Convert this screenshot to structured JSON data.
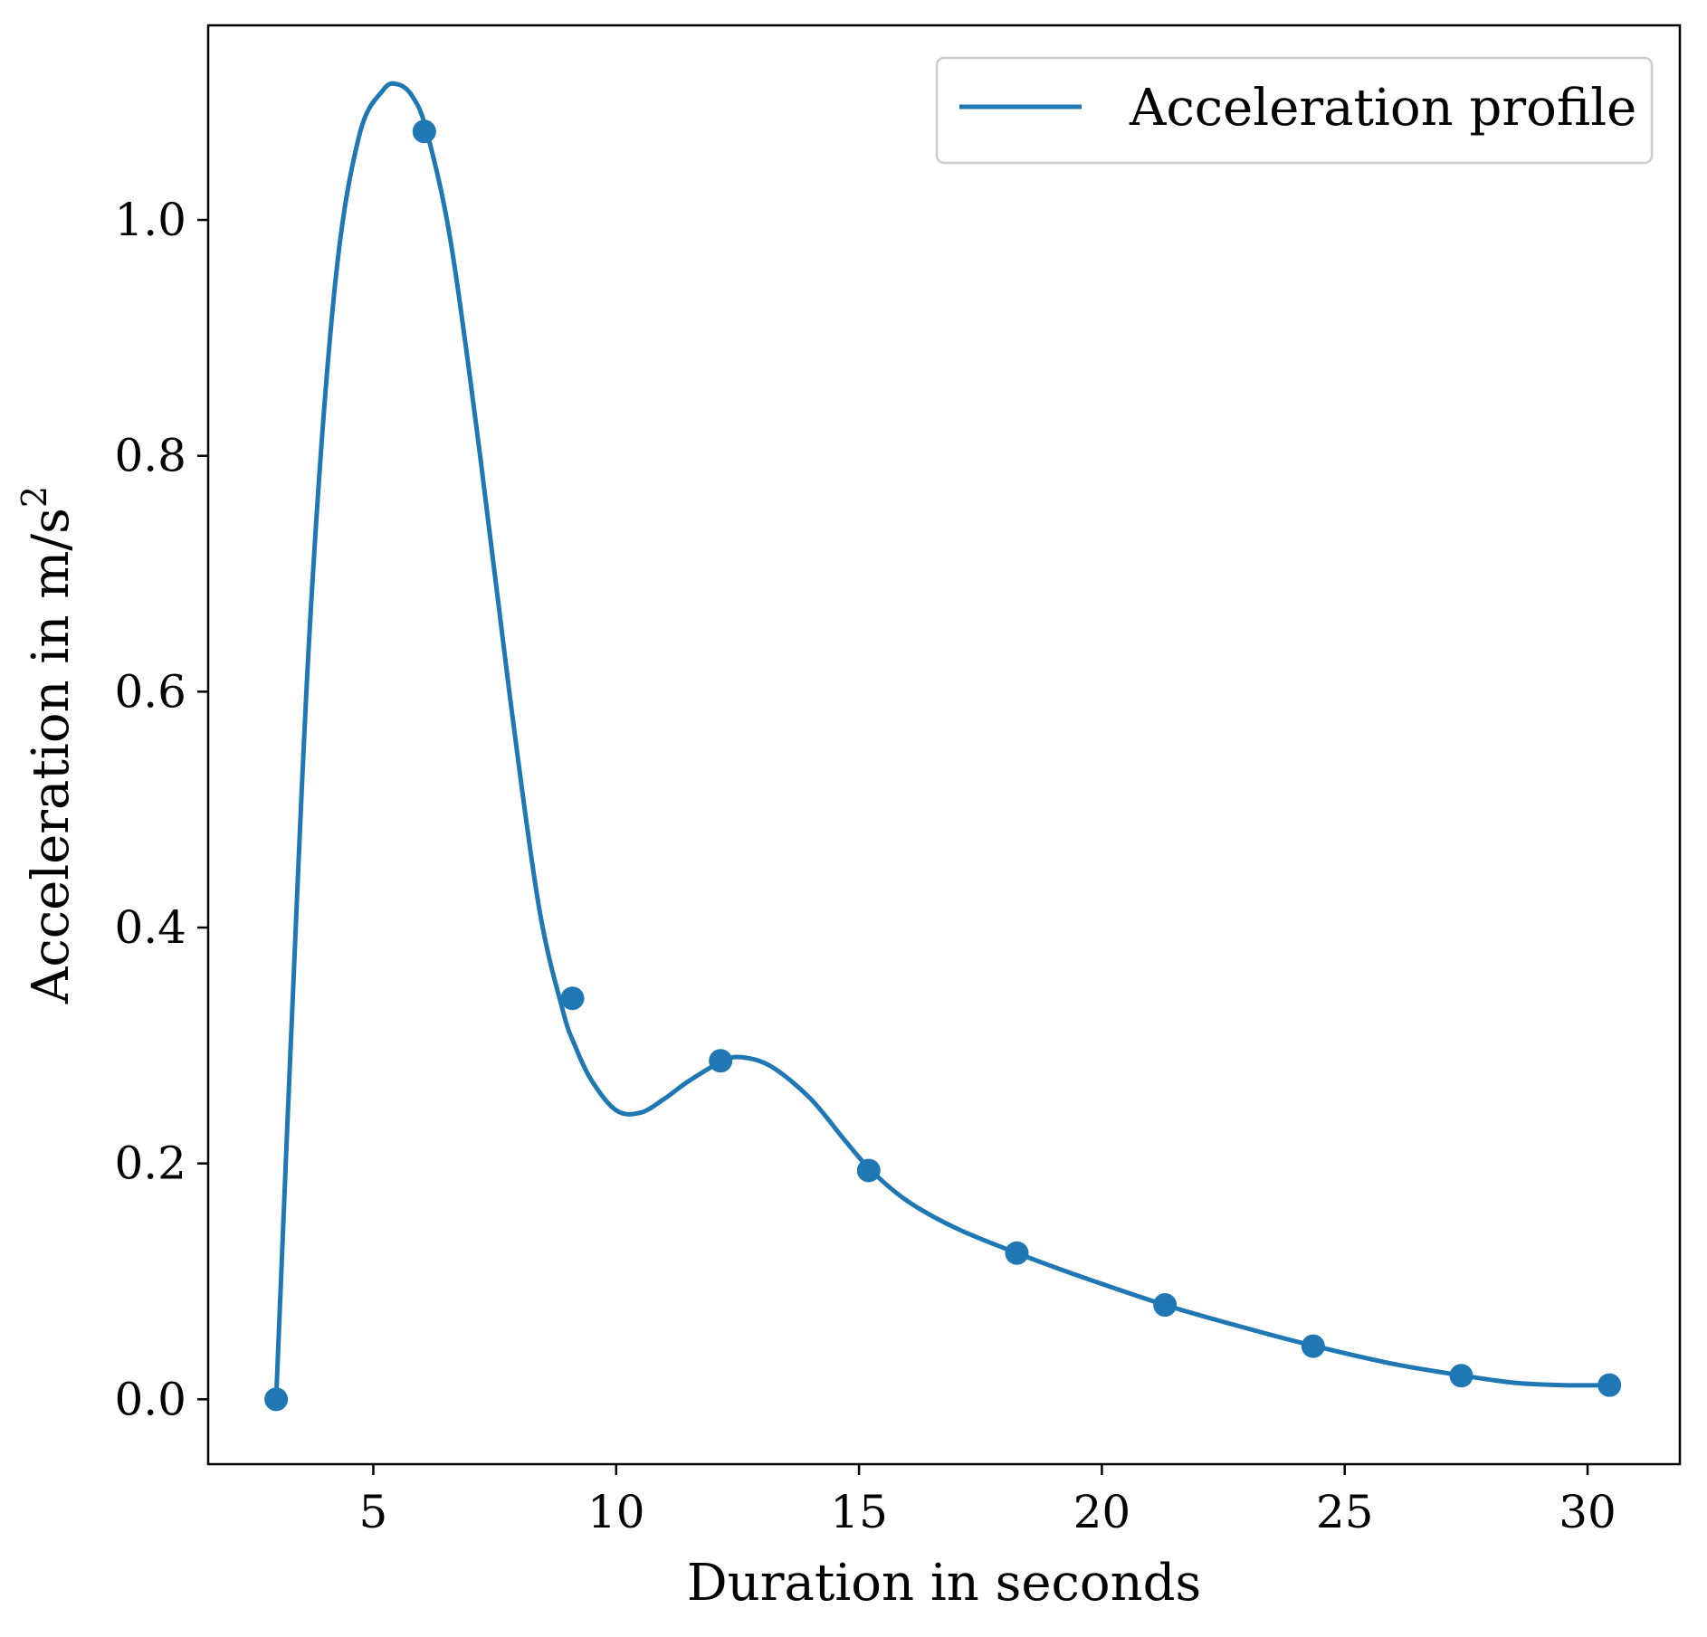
{
  "chart_data": {
    "type": "line",
    "xlabel": "Duration in seconds",
    "ylabel": "Acceleration in m/s",
    "ylabel_superscript": "2",
    "xlim": [
      1.6,
      31.9
    ],
    "ylim": [
      -0.055,
      1.165
    ],
    "x_ticks": [
      5,
      10,
      15,
      20,
      25,
      30
    ],
    "x_tick_labels": [
      "5",
      "10",
      "15",
      "20",
      "25",
      "30"
    ],
    "y_ticks": [
      0.0,
      0.2,
      0.4,
      0.6,
      0.8,
      1.0
    ],
    "y_tick_labels": [
      "0.0",
      "0.2",
      "0.4",
      "0.6",
      "0.8",
      "1.0"
    ],
    "grid": false,
    "legend_position": "top-right",
    "series": [
      {
        "name": "Acceleration profile",
        "color": "#1f77b4",
        "curve": {
          "x": [
            3.0,
            3.3,
            3.7,
            4.2,
            4.7,
            5.2,
            5.5,
            5.8,
            6.1,
            6.6,
            7.2,
            7.8,
            8.4,
            8.9,
            9.15,
            9.5,
            10.0,
            10.5,
            11.0,
            11.5,
            12.2,
            12.6,
            13.2,
            14.0,
            14.7,
            15.25,
            16.0,
            17.0,
            18.25,
            19.5,
            21.3,
            23.0,
            24.4,
            26.0,
            27.45,
            28.5,
            29.5,
            30.5
          ],
          "y": [
            0.0,
            0.3,
            0.66,
            0.94,
            1.07,
            1.11,
            1.115,
            1.105,
            1.075,
            0.98,
            0.8,
            0.6,
            0.42,
            0.33,
            0.3,
            0.27,
            0.245,
            0.243,
            0.255,
            0.27,
            0.287,
            0.29,
            0.282,
            0.255,
            0.22,
            0.194,
            0.168,
            0.145,
            0.124,
            0.105,
            0.08,
            0.06,
            0.045,
            0.03,
            0.02,
            0.014,
            0.012,
            0.012
          ]
        },
        "markers": {
          "x": [
            3.0,
            6.05,
            9.1,
            12.15,
            15.2,
            18.25,
            21.3,
            24.35,
            27.4,
            30.45
          ],
          "y": [
            0.0,
            1.075,
            0.34,
            0.287,
            0.194,
            0.124,
            0.08,
            0.045,
            0.02,
            0.012
          ]
        }
      }
    ]
  }
}
